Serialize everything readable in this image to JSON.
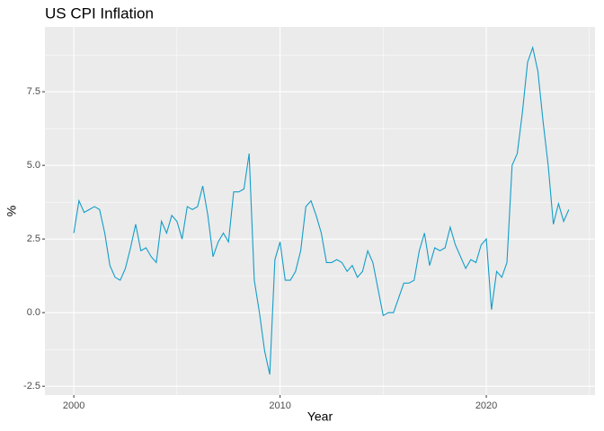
{
  "chart_data": {
    "type": "line",
    "title": "US CPI Inflation",
    "xlabel": "Year",
    "ylabel": "%",
    "color": "#139dc8",
    "x": [
      2000,
      2000.25,
      2000.5,
      2000.75,
      2001,
      2001.25,
      2001.5,
      2001.75,
      2002,
      2002.25,
      2002.5,
      2002.75,
      2003,
      2003.25,
      2003.5,
      2003.75,
      2004,
      2004.25,
      2004.5,
      2004.75,
      2005,
      2005.25,
      2005.5,
      2005.75,
      2006,
      2006.25,
      2006.5,
      2006.75,
      2007,
      2007.25,
      2007.5,
      2007.75,
      2008,
      2008.25,
      2008.5,
      2008.75,
      2009,
      2009.25,
      2009.5,
      2009.75,
      2010,
      2010.25,
      2010.5,
      2010.75,
      2011,
      2011.25,
      2011.5,
      2011.75,
      2012,
      2012.25,
      2012.5,
      2012.75,
      2013,
      2013.25,
      2013.5,
      2013.75,
      2014,
      2014.25,
      2014.5,
      2014.75,
      2015,
      2015.25,
      2015.5,
      2015.75,
      2016,
      2016.25,
      2016.5,
      2016.75,
      2017,
      2017.25,
      2017.5,
      2017.75,
      2018,
      2018.25,
      2018.5,
      2018.75,
      2019,
      2019.25,
      2019.5,
      2019.75,
      2020,
      2020.25,
      2020.5,
      2020.75,
      2021,
      2021.25,
      2021.5,
      2021.75,
      2022,
      2022.25,
      2022.5,
      2022.75,
      2023,
      2023.25,
      2023.5,
      2023.75,
      2024
    ],
    "values": [
      2.7,
      3.8,
      3.4,
      3.5,
      3.6,
      3.5,
      2.7,
      1.6,
      1.2,
      1.1,
      1.5,
      2.2,
      3.0,
      2.1,
      2.2,
      1.9,
      1.7,
      3.1,
      2.7,
      3.3,
      3.1,
      2.5,
      3.6,
      3.5,
      3.6,
      4.3,
      3.3,
      1.9,
      2.4,
      2.7,
      2.4,
      4.1,
      4.1,
      4.2,
      5.4,
      1.1,
      0.0,
      -1.3,
      -2.1,
      1.8,
      2.4,
      1.1,
      1.1,
      1.4,
      2.1,
      3.6,
      3.8,
      3.3,
      2.7,
      1.7,
      1.7,
      1.8,
      1.7,
      1.4,
      1.6,
      1.2,
      1.4,
      2.1,
      1.7,
      0.8,
      -0.1,
      0.0,
      0.0,
      0.5,
      1.0,
      1.0,
      1.1,
      2.1,
      2.7,
      1.6,
      2.2,
      2.1,
      2.2,
      2.9,
      2.3,
      1.9,
      1.5,
      1.8,
      1.7,
      2.3,
      2.5,
      0.1,
      1.4,
      1.2,
      1.7,
      5.0,
      5.4,
      6.8,
      8.5,
      9.0,
      8.2,
      6.5,
      5.0,
      3.0,
      3.7,
      3.1,
      3.5
    ],
    "xlim": [
      1998.6,
      2025.27
    ],
    "xticks": [
      2000,
      2010,
      2020
    ],
    "x_minor_ticks": [
      2005,
      2015,
      2025
    ],
    "ylim": [
      -2.8,
      9.7
    ],
    "yticks": [
      -2.5,
      {
        "value": 0,
        "label": "0.0"
      },
      2.5,
      {
        "value": 5,
        "label": "5.0"
      },
      7.5
    ],
    "y_minor_ticks": [
      -1.25,
      1.25,
      3.75,
      6.25,
      8.75
    ],
    "grid": true
  }
}
